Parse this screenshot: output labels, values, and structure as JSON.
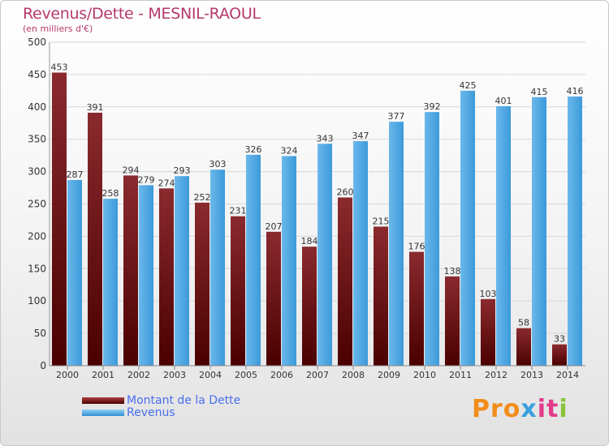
{
  "header": {
    "title": "Revenus/Dette - MESNIL-RAOUL",
    "subtitle": "(en milliers d'€)"
  },
  "legend": {
    "debt_label": "Montant de la Dette",
    "revenue_label": "Revenus"
  },
  "logo": {
    "text": "Proxiti",
    "parts": [
      "Pro",
      "x",
      "it",
      "i"
    ]
  },
  "colors": {
    "title": "#b5396b",
    "debt_top": "#b04040",
    "debt_bottom": "#4a0000",
    "revenue_top": "#8fd0f6",
    "revenue_bottom": "#2e8fd2",
    "legend_text": "#4a6ff0"
  },
  "chart_data": {
    "type": "bar",
    "title": "Revenus/Dette - MESNIL-RAOUL",
    "subtitle": "(en milliers d'€)",
    "xlabel": "",
    "ylabel": "",
    "ylim": [
      0,
      500
    ],
    "yticks": [
      0,
      50,
      100,
      150,
      200,
      250,
      300,
      350,
      400,
      450,
      500
    ],
    "grid": true,
    "legend_position": "bottom-left",
    "categories": [
      "2000",
      "2001",
      "2002",
      "2003",
      "2004",
      "2005",
      "2006",
      "2007",
      "2008",
      "2009",
      "2010",
      "2011",
      "2012",
      "2013",
      "2014"
    ],
    "series": [
      {
        "name": "Montant de la Dette",
        "values": [
          453,
          391,
          294,
          274,
          252,
          231,
          207,
          184,
          260,
          215,
          176,
          138,
          103,
          58,
          33
        ]
      },
      {
        "name": "Revenus",
        "values": [
          287,
          258,
          279,
          293,
          303,
          326,
          324,
          343,
          347,
          377,
          392,
          425,
          401,
          415,
          416
        ]
      }
    ]
  }
}
